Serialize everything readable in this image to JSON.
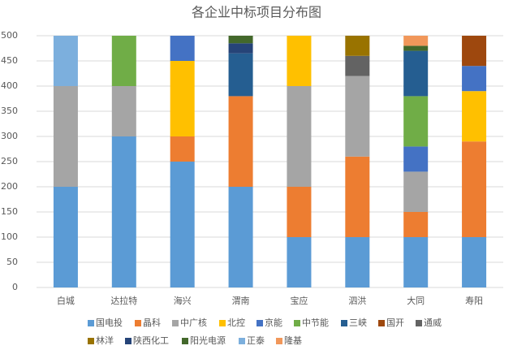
{
  "chart_data": {
    "type": "stacked-bar",
    "title": "各企业中标项目分布图",
    "categories": [
      "白城",
      "达拉特",
      "海兴",
      "渭南",
      "宝应",
      "泗洪",
      "大同",
      "寿阳"
    ],
    "ylim": [
      0,
      500
    ],
    "yticks": [
      0,
      50,
      100,
      150,
      200,
      250,
      300,
      350,
      400,
      450,
      500
    ],
    "grid": true,
    "series": [
      {
        "name": "国电投",
        "color": "#5b9bd5",
        "values": [
          200,
          300,
          250,
          200,
          100,
          100,
          100,
          100
        ]
      },
      {
        "name": "晶科",
        "color": "#ed7d31",
        "values": [
          null,
          null,
          50,
          180,
          100,
          160,
          50,
          190
        ]
      },
      {
        "name": "中广核",
        "color": "#a5a5a5",
        "values": [
          200,
          100,
          null,
          null,
          200,
          160,
          80,
          null
        ]
      },
      {
        "name": "北控",
        "color": "#ffc000",
        "values": [
          null,
          null,
          150,
          null,
          100,
          null,
          null,
          100
        ]
      },
      {
        "name": "京能",
        "color": "#4472c4",
        "values": [
          null,
          null,
          50,
          null,
          null,
          null,
          50,
          50
        ]
      },
      {
        "name": "中节能",
        "color": "#70ad47",
        "values": [
          null,
          100,
          null,
          null,
          null,
          null,
          100,
          null
        ]
      },
      {
        "name": "三峡",
        "color": "#255e91",
        "values": [
          null,
          null,
          null,
          85,
          null,
          null,
          90,
          null
        ]
      },
      {
        "name": "国开",
        "color": "#9e480e",
        "values": [
          null,
          null,
          null,
          null,
          null,
          null,
          null,
          60
        ]
      },
      {
        "name": "通威",
        "color": "#636363",
        "values": [
          null,
          null,
          null,
          null,
          null,
          40,
          null,
          null
        ]
      },
      {
        "name": "林洋",
        "color": "#997300",
        "values": [
          null,
          null,
          null,
          null,
          null,
          40,
          null,
          null
        ]
      },
      {
        "name": "陕西化工",
        "color": "#264478",
        "values": [
          null,
          null,
          null,
          20,
          null,
          null,
          null,
          null
        ]
      },
      {
        "name": "阳光电源",
        "color": "#43682b",
        "values": [
          null,
          null,
          null,
          15,
          null,
          null,
          10,
          null
        ]
      },
      {
        "name": "正泰",
        "color": "#7cafdd",
        "values": [
          100,
          null,
          null,
          null,
          null,
          null,
          null,
          null
        ]
      },
      {
        "name": "隆基",
        "color": "#f1975a",
        "values": [
          null,
          null,
          null,
          null,
          null,
          null,
          20,
          null
        ]
      }
    ]
  }
}
